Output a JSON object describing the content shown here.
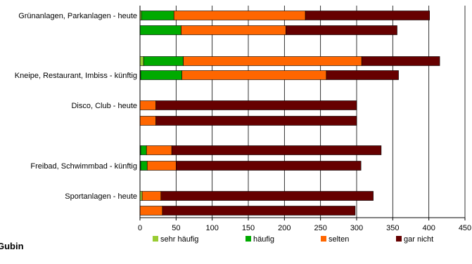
{
  "footer_text": "Gubin",
  "chart_data": {
    "type": "bar",
    "orientation": "horizontal",
    "stacked": true,
    "xlim": [
      0,
      450
    ],
    "x_ticks": [
      0,
      50,
      100,
      150,
      200,
      250,
      300,
      350,
      400,
      450
    ],
    "grid": true,
    "legend_position": "bottom",
    "category_labels": [
      "Grünanlagen, Parkanlagen - heute",
      "Kneipe, Restaurant, Imbiss - künftig",
      "Disco, Club - heute",
      "Freibad, Schwimmbad - künftig",
      "Sportanlagen - heute"
    ],
    "series": [
      {
        "name": "sehr häufig",
        "color": "#99cc33"
      },
      {
        "name": "häufig",
        "color": "#00aa00"
      },
      {
        "name": "selten",
        "color": "#ff6600"
      },
      {
        "name": "gar nicht",
        "color": "#660000"
      }
    ],
    "bars": [
      {
        "values": [
          2,
          45,
          182,
          172
        ]
      },
      {
        "values": [
          0,
          57,
          145,
          154
        ]
      },
      {
        "values": [
          5,
          55,
          247,
          108
        ]
      },
      {
        "values": [
          1,
          57,
          200,
          100
        ]
      },
      {
        "values": [
          0,
          0,
          22,
          278
        ]
      },
      {
        "values": [
          0,
          0,
          22,
          278
        ]
      },
      {
        "values": [
          1,
          8,
          35,
          290
        ]
      },
      {
        "values": [
          1,
          9,
          40,
          256
        ]
      },
      {
        "values": [
          3,
          0,
          26,
          294
        ]
      },
      {
        "values": [
          0,
          0,
          31,
          267
        ]
      }
    ]
  }
}
